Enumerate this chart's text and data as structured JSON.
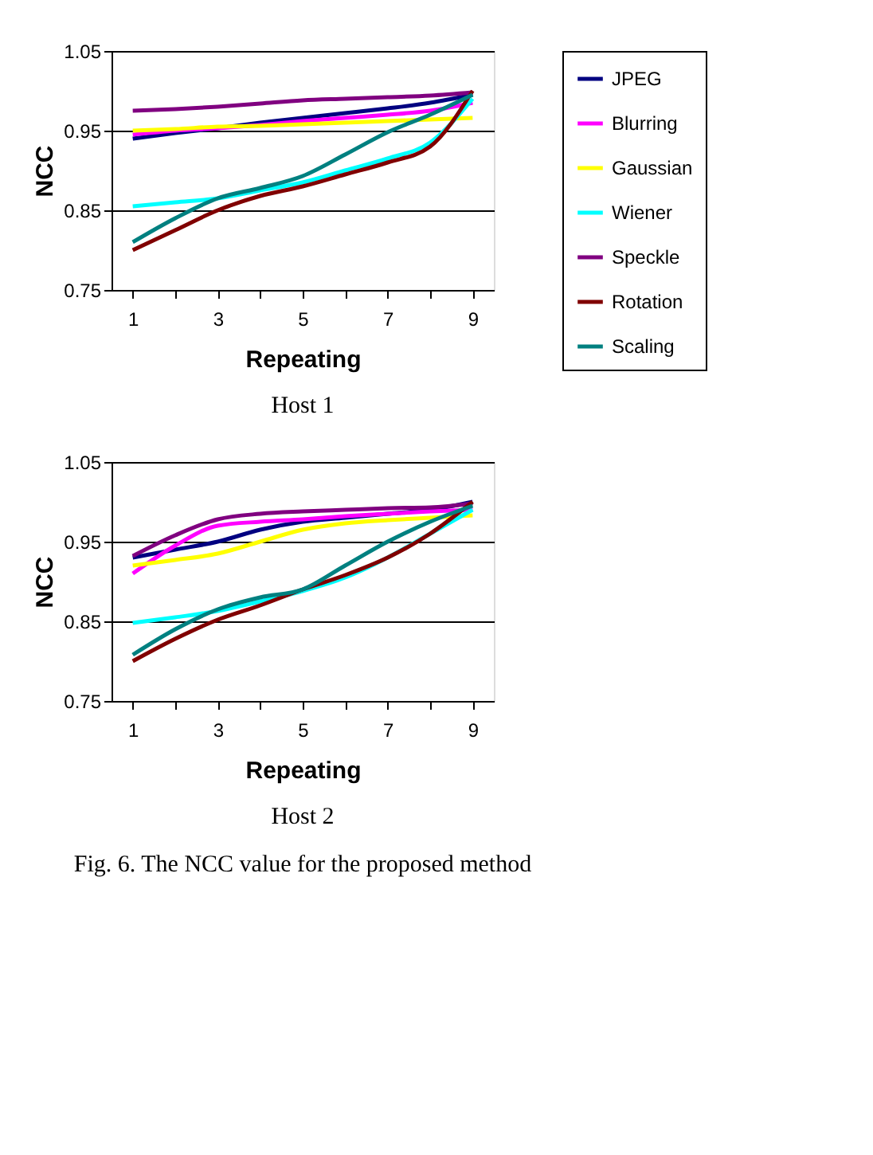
{
  "chart_data": [
    {
      "type": "line",
      "xlabel": "Repeating",
      "ylabel": "NCC",
      "categories": [
        "1",
        null,
        "3",
        null,
        "5",
        null,
        "7",
        null,
        "9"
      ],
      "ylim": [
        0.75,
        1.05
      ],
      "yticks": [
        0.75,
        0.85,
        0.95,
        1.05
      ],
      "grid": "y",
      "legend": "right",
      "annotations": [
        "Host 1"
      ],
      "series": [
        {
          "name": "JPEG",
          "color": "#000080",
          "values": [
            0.94,
            0.947,
            0.953,
            0.96,
            0.966,
            0.972,
            0.978,
            0.985,
            0.995
          ]
        },
        {
          "name": "Blurring",
          "color": "#ff00ff",
          "values": [
            0.945,
            0.95,
            0.953,
            0.957,
            0.962,
            0.966,
            0.97,
            0.975,
            0.985
          ]
        },
        {
          "name": "Gaussian",
          "color": "#ffff00",
          "values": [
            0.95,
            0.952,
            0.955,
            0.956,
            0.958,
            0.96,
            0.962,
            0.964,
            0.966
          ]
        },
        {
          "name": "Wiener",
          "color": "#00ffff",
          "values": [
            0.855,
            0.86,
            0.865,
            0.875,
            0.885,
            0.9,
            0.915,
            0.935,
            0.99
          ]
        },
        {
          "name": "Speckle",
          "color": "#800080",
          "values": [
            0.975,
            0.977,
            0.98,
            0.984,
            0.988,
            0.99,
            0.992,
            0.994,
            0.998
          ]
        },
        {
          "name": "Rotation",
          "color": "#800000",
          "values": [
            0.8,
            0.825,
            0.85,
            0.868,
            0.88,
            0.895,
            0.91,
            0.93,
            1.0
          ]
        },
        {
          "name": "Scaling",
          "color": "#008080",
          "values": [
            0.81,
            0.84,
            0.865,
            0.878,
            0.893,
            0.92,
            0.948,
            0.97,
            0.995
          ]
        }
      ]
    },
    {
      "type": "line",
      "xlabel": "Repeating",
      "ylabel": "NCC",
      "categories": [
        "1",
        null,
        "3",
        null,
        "5",
        null,
        "7",
        null,
        "9"
      ],
      "ylim": [
        0.75,
        1.05
      ],
      "yticks": [
        0.75,
        0.85,
        0.95,
        1.05
      ],
      "grid": "y",
      "legend": "right",
      "annotations": [
        "Host 2",
        "Fig. 6. The NCC value for the proposed method"
      ],
      "series": [
        {
          "name": "JPEG",
          "color": "#000080",
          "values": [
            0.93,
            0.94,
            0.95,
            0.965,
            0.975,
            0.98,
            0.985,
            0.99,
            1.0
          ]
        },
        {
          "name": "Blurring",
          "color": "#ff00ff",
          "values": [
            0.91,
            0.945,
            0.97,
            0.975,
            0.978,
            0.982,
            0.985,
            0.988,
            0.99
          ]
        },
        {
          "name": "Gaussian",
          "color": "#ffff00",
          "values": [
            0.92,
            0.927,
            0.935,
            0.95,
            0.965,
            0.973,
            0.977,
            0.98,
            0.983
          ]
        },
        {
          "name": "Wiener",
          "color": "#00ffff",
          "values": [
            0.848,
            0.855,
            0.863,
            0.875,
            0.888,
            0.905,
            0.93,
            0.96,
            0.99
          ]
        },
        {
          "name": "Speckle",
          "color": "#800080",
          "values": [
            0.932,
            0.958,
            0.978,
            0.985,
            0.988,
            0.99,
            0.992,
            0.993,
            0.998
          ]
        },
        {
          "name": "Rotation",
          "color": "#800000",
          "values": [
            0.8,
            0.828,
            0.852,
            0.87,
            0.89,
            0.908,
            0.93,
            0.96,
            1.0
          ]
        },
        {
          "name": "Scaling",
          "color": "#008080",
          "values": [
            0.808,
            0.84,
            0.865,
            0.88,
            0.89,
            0.92,
            0.95,
            0.975,
            0.995
          ]
        }
      ]
    }
  ]
}
